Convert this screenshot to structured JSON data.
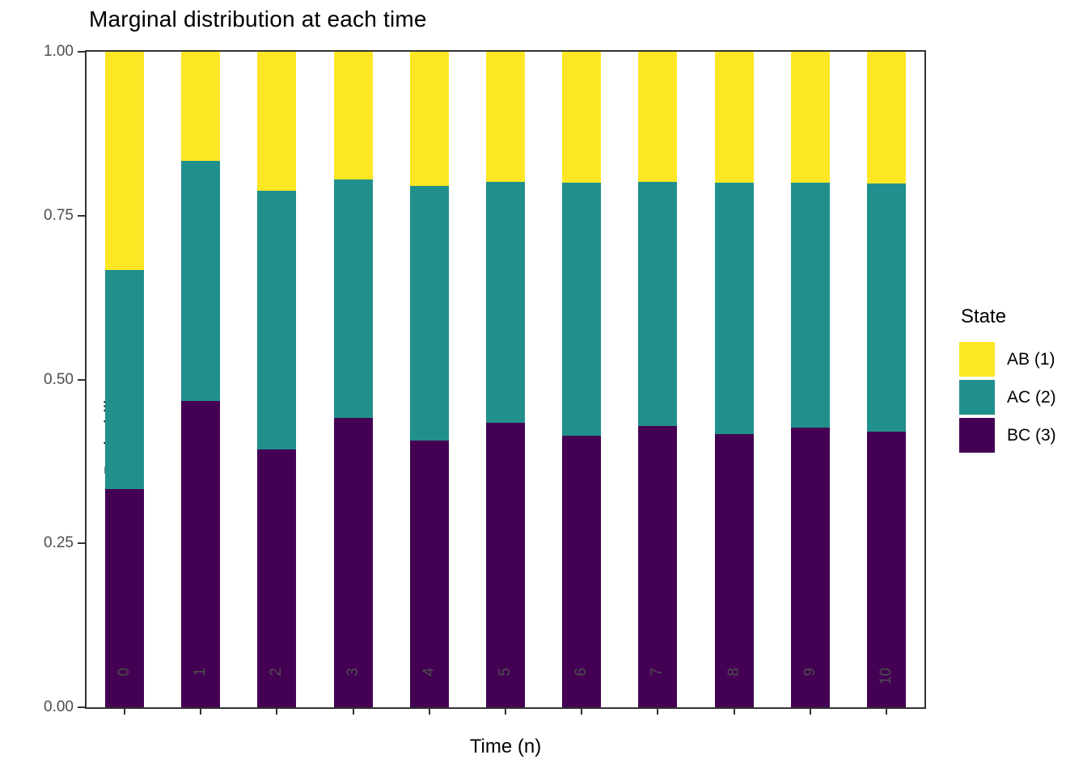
{
  "title": "Marginal distribution at each time",
  "chart_data": {
    "type": "bar",
    "stacked": true,
    "title": "Marginal distribution at each time",
    "xlabel": "Time (n)",
    "ylabel": "Probability",
    "categories": [
      "0",
      "1",
      "2",
      "3",
      "4",
      "5",
      "6",
      "7",
      "8",
      "9",
      "10"
    ],
    "series": [
      {
        "name": "BC (3)",
        "color": "#440154",
        "values": [
          0.333,
          0.467,
          0.393,
          0.442,
          0.407,
          0.434,
          0.414,
          0.429,
          0.417,
          0.427,
          0.42
        ]
      },
      {
        "name": "AC (2)",
        "color": "#21908C",
        "values": [
          0.334,
          0.366,
          0.395,
          0.363,
          0.388,
          0.368,
          0.386,
          0.372,
          0.383,
          0.373,
          0.379
        ]
      },
      {
        "name": "AB (1)",
        "color": "#FDE725",
        "values": [
          0.333,
          0.167,
          0.212,
          0.195,
          0.205,
          0.198,
          0.2,
          0.199,
          0.2,
          0.2,
          0.201
        ]
      }
    ],
    "ylim": [
      0,
      1
    ],
    "yticks": [
      {
        "value": 1.0,
        "label": "1.00"
      },
      {
        "value": 0.75,
        "label": "0.75"
      },
      {
        "value": 0.5,
        "label": "0.50"
      },
      {
        "value": 0.25,
        "label": "0.25"
      },
      {
        "value": 0.0,
        "label": "0.00"
      }
    ],
    "grid": false,
    "legend_position": "right"
  },
  "legend": {
    "title": "State",
    "items": [
      {
        "label": "AB (1)",
        "color": "#FDE725"
      },
      {
        "label": "AC (2)",
        "color": "#21908C"
      },
      {
        "label": "BC (3)",
        "color": "#440154"
      }
    ]
  },
  "colors": {
    "axis": "#333333",
    "tick_text": "#4d4d4d",
    "background": "#ffffff"
  }
}
